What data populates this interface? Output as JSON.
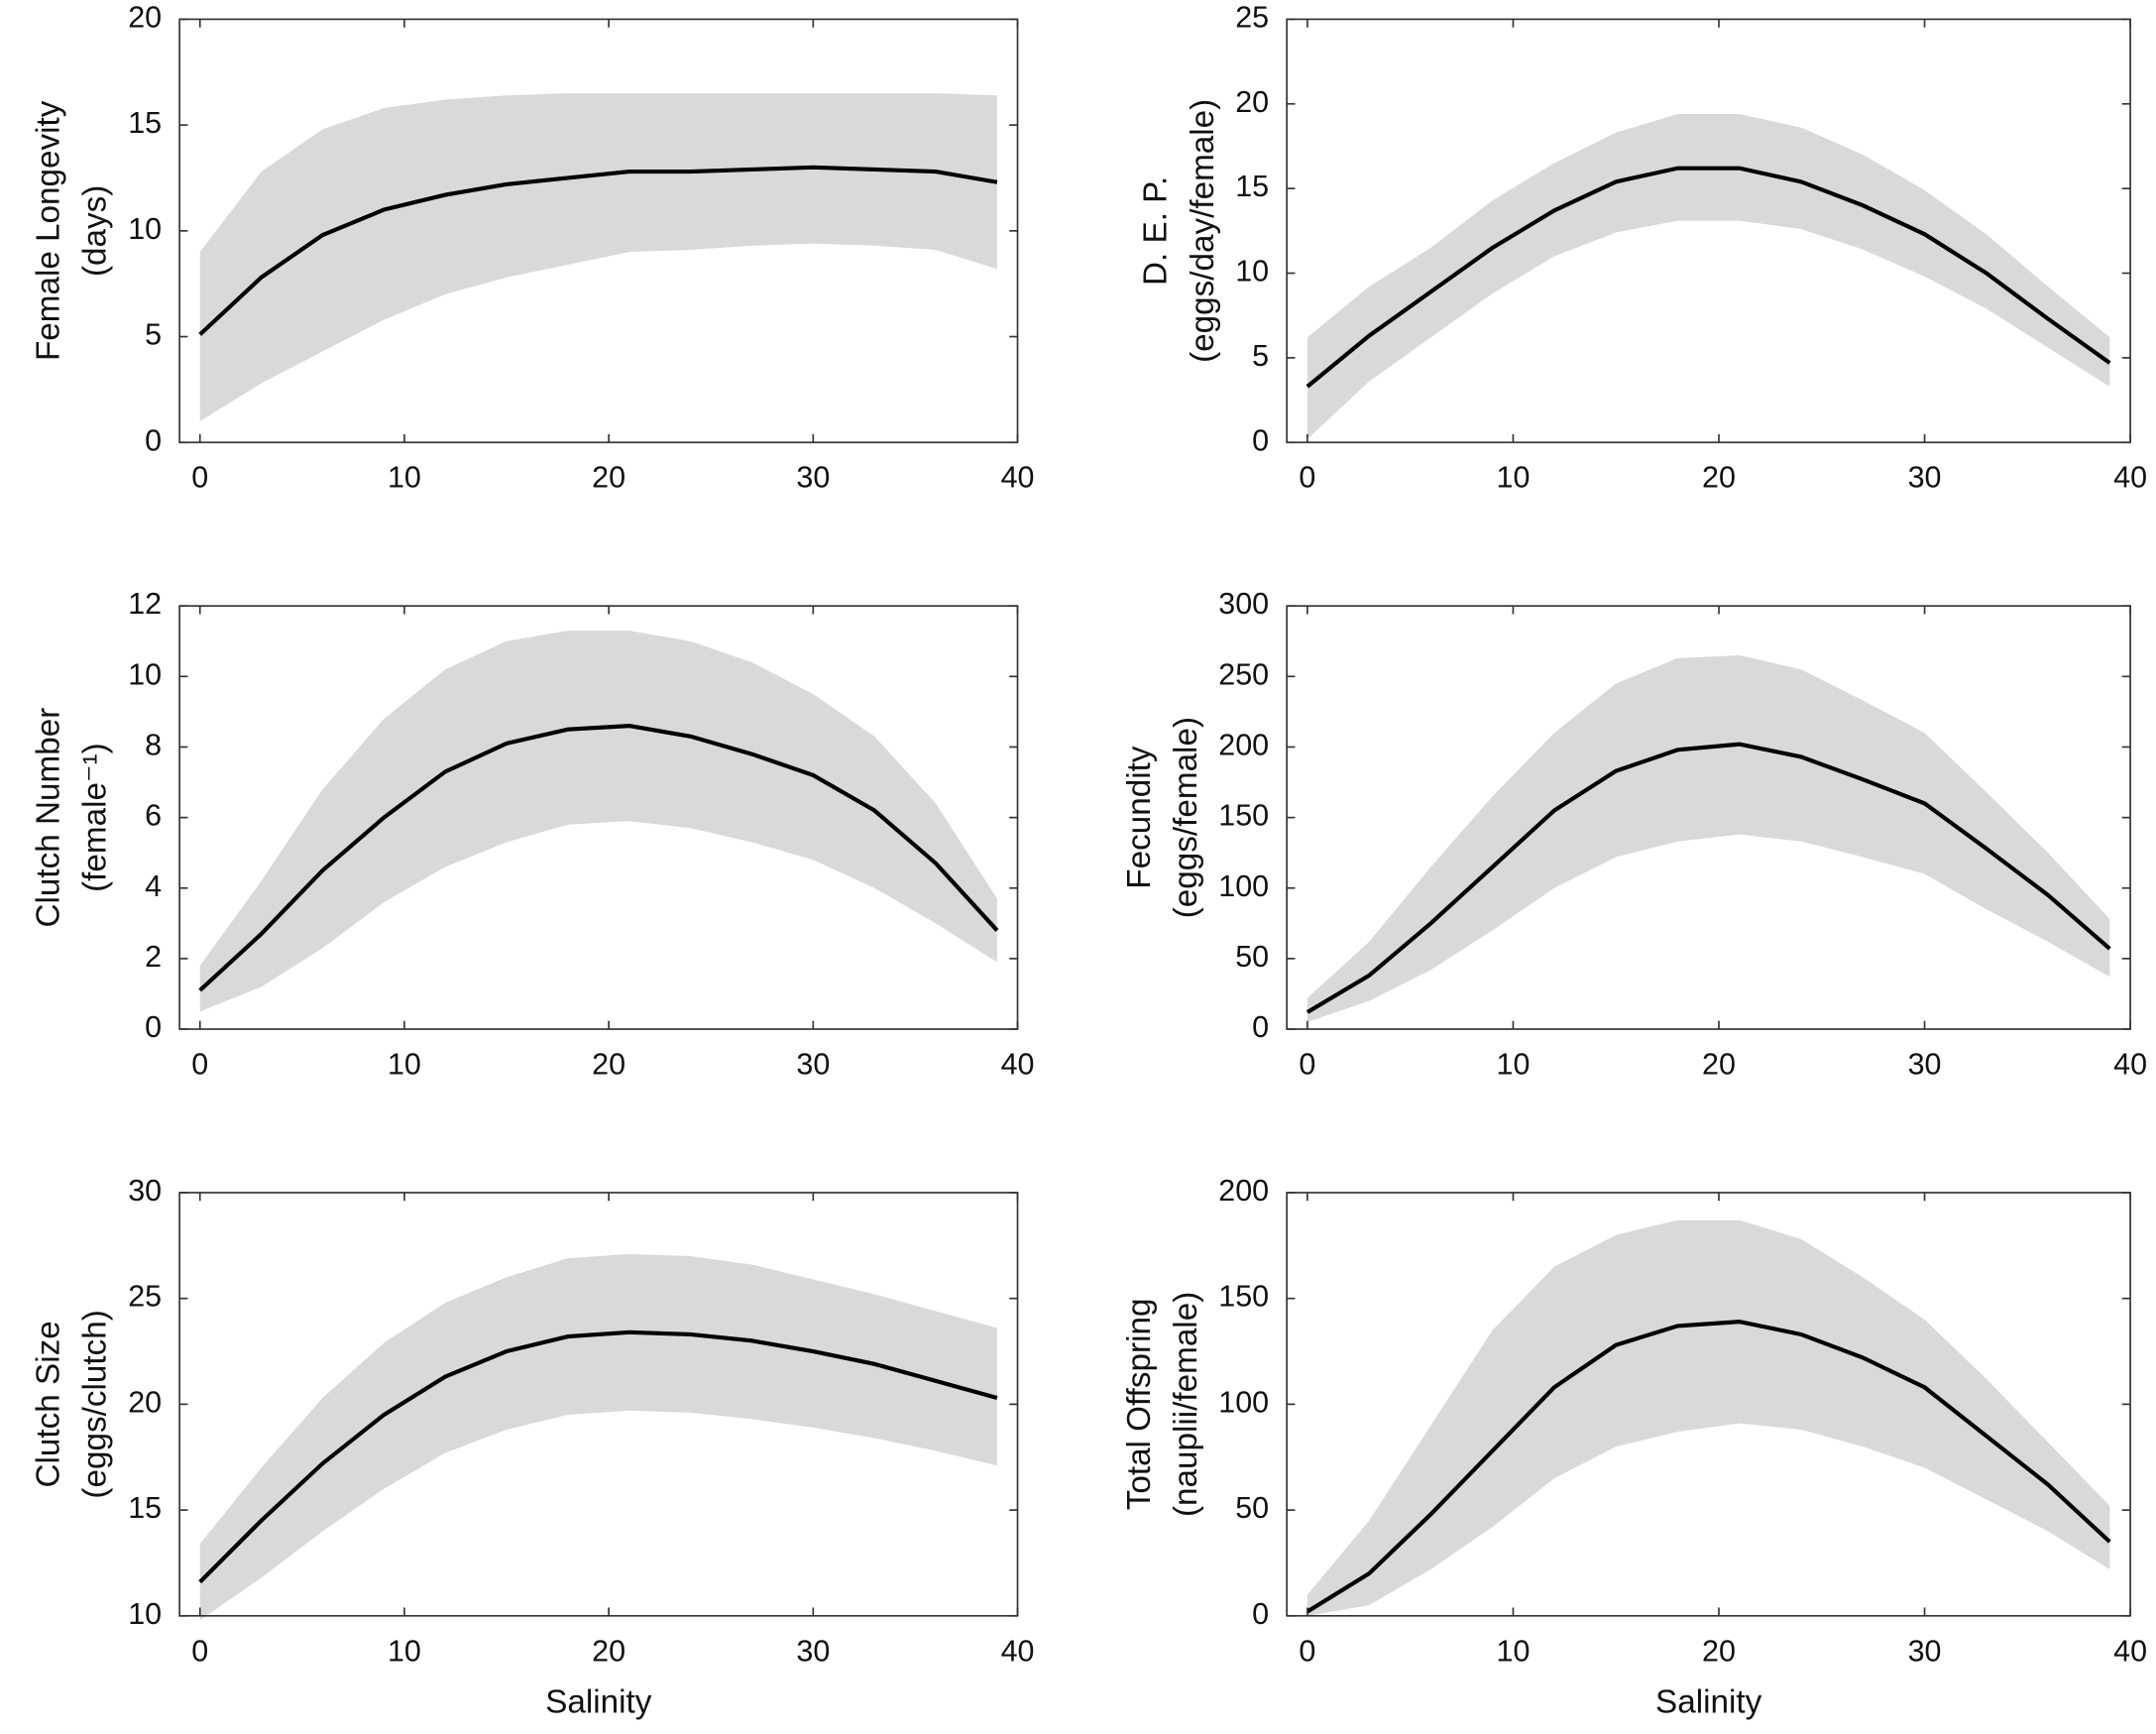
{
  "chart_data": [
    {
      "type": "line",
      "ylabel": [
        "Female Longevity",
        "(days)"
      ],
      "x": [
        0,
        3,
        6,
        9,
        12,
        15,
        18,
        21,
        24,
        27,
        30,
        33,
        36,
        39
      ],
      "xlim": [
        -1,
        40
      ],
      "xticks": [
        0,
        10,
        20,
        30,
        40
      ],
      "ylim": [
        0,
        20
      ],
      "yticks": [
        0,
        5,
        10,
        15,
        20
      ],
      "color": "#000000",
      "band_color": "#d9d9d9",
      "values": [
        5.1,
        7.8,
        9.8,
        11.0,
        11.7,
        12.2,
        12.5,
        12.8,
        12.8,
        12.9,
        13.0,
        12.9,
        12.8,
        12.3
      ],
      "band_lower": [
        1.0,
        2.8,
        4.3,
        5.8,
        7.0,
        7.8,
        8.4,
        9.0,
        9.1,
        9.3,
        9.4,
        9.3,
        9.1,
        8.2
      ],
      "band_upper": [
        9.0,
        12.8,
        14.8,
        15.8,
        16.2,
        16.4,
        16.5,
        16.5,
        16.5,
        16.5,
        16.5,
        16.5,
        16.5,
        16.4
      ]
    },
    {
      "type": "line",
      "ylabel": [
        "D. E. P.",
        "(eggs/day/female)"
      ],
      "x": [
        0,
        3,
        6,
        9,
        12,
        15,
        18,
        21,
        24,
        27,
        30,
        33,
        36,
        39
      ],
      "xlim": [
        -1,
        40
      ],
      "xticks": [
        0,
        10,
        20,
        30,
        40
      ],
      "ylim": [
        0,
        25
      ],
      "yticks": [
        0,
        5,
        10,
        15,
        20,
        25
      ],
      "color": "#000000",
      "band_color": "#d9d9d9",
      "values": [
        3.3,
        6.3,
        8.9,
        11.5,
        13.7,
        15.4,
        16.2,
        16.2,
        15.4,
        14.0,
        12.3,
        10.0,
        7.3,
        4.7
      ],
      "band_lower": [
        0.2,
        3.6,
        6.2,
        8.8,
        11.0,
        12.4,
        13.1,
        13.1,
        12.6,
        11.4,
        9.8,
        7.9,
        5.6,
        3.3
      ],
      "band_upper": [
        6.2,
        9.2,
        11.5,
        14.3,
        16.5,
        18.3,
        19.4,
        19.4,
        18.6,
        17.0,
        14.9,
        12.3,
        9.2,
        6.2
      ]
    },
    {
      "type": "line",
      "ylabel": [
        "Clutch Number",
        "(female⁻¹)"
      ],
      "x": [
        0,
        3,
        6,
        9,
        12,
        15,
        18,
        21,
        24,
        27,
        30,
        33,
        36,
        39
      ],
      "xlim": [
        -1,
        40
      ],
      "xticks": [
        0,
        10,
        20,
        30,
        40
      ],
      "ylim": [
        0,
        12
      ],
      "yticks": [
        0,
        2,
        4,
        6,
        8,
        10,
        12
      ],
      "color": "#000000",
      "band_color": "#d9d9d9",
      "values": [
        1.1,
        2.7,
        4.5,
        6.0,
        7.3,
        8.1,
        8.5,
        8.6,
        8.3,
        7.8,
        7.2,
        6.2,
        4.7,
        2.8
      ],
      "band_lower": [
        0.5,
        1.2,
        2.3,
        3.6,
        4.6,
        5.3,
        5.8,
        5.9,
        5.7,
        5.3,
        4.8,
        4.0,
        3.0,
        1.9
      ],
      "band_upper": [
        1.8,
        4.2,
        6.8,
        8.8,
        10.2,
        11.0,
        11.3,
        11.3,
        11.0,
        10.4,
        9.5,
        8.3,
        6.4,
        3.7
      ]
    },
    {
      "type": "line",
      "ylabel": [
        "Fecundity",
        "(eggs/female)"
      ],
      "x": [
        0,
        3,
        6,
        9,
        12,
        15,
        18,
        21,
        24,
        27,
        30,
        33,
        36,
        39
      ],
      "xlim": [
        -1,
        40
      ],
      "xticks": [
        0,
        10,
        20,
        30,
        40
      ],
      "ylim": [
        0,
        300
      ],
      "yticks": [
        0,
        50,
        100,
        150,
        200,
        250,
        300
      ],
      "color": "#000000",
      "band_color": "#d9d9d9",
      "values": [
        12,
        38,
        75,
        115,
        155,
        183,
        198,
        202,
        193,
        177,
        160,
        128,
        95,
        57
      ],
      "band_lower": [
        5,
        20,
        42,
        70,
        100,
        122,
        133,
        138,
        133,
        122,
        110,
        85,
        62,
        37
      ],
      "band_upper": [
        22,
        62,
        115,
        165,
        210,
        245,
        263,
        265,
        255,
        233,
        210,
        168,
        125,
        78
      ]
    },
    {
      "type": "line",
      "ylabel": [
        "Clutch Size",
        "(eggs/clutch)"
      ],
      "xlabel": "Salinity",
      "x": [
        0,
        3,
        6,
        9,
        12,
        15,
        18,
        21,
        24,
        27,
        30,
        33,
        36,
        39
      ],
      "xlim": [
        -1,
        40
      ],
      "xticks": [
        0,
        10,
        20,
        30,
        40
      ],
      "ylim": [
        10,
        30
      ],
      "yticks": [
        10,
        15,
        20,
        25,
        30
      ],
      "color": "#000000",
      "band_color": "#d9d9d9",
      "values": [
        11.6,
        14.5,
        17.2,
        19.5,
        21.3,
        22.5,
        23.2,
        23.4,
        23.3,
        23.0,
        22.5,
        21.9,
        21.1,
        20.3
      ],
      "band_lower": [
        9.8,
        11.8,
        14.0,
        16.0,
        17.7,
        18.8,
        19.5,
        19.7,
        19.6,
        19.3,
        18.9,
        18.4,
        17.8,
        17.1
      ],
      "band_upper": [
        13.4,
        17.0,
        20.3,
        22.9,
        24.8,
        26.0,
        26.9,
        27.1,
        27.0,
        26.6,
        25.9,
        25.2,
        24.4,
        23.6
      ]
    },
    {
      "type": "line",
      "ylabel": [
        "Total Offspring",
        "(nauplii/female)"
      ],
      "xlabel": "Salinity",
      "x": [
        0,
        3,
        6,
        9,
        12,
        15,
        18,
        21,
        24,
        27,
        30,
        33,
        36,
        39
      ],
      "xlim": [
        -1,
        40
      ],
      "xticks": [
        0,
        10,
        20,
        30,
        40
      ],
      "ylim": [
        0,
        200
      ],
      "yticks": [
        0,
        50,
        100,
        150,
        200
      ],
      "color": "#000000",
      "band_color": "#d9d9d9",
      "values": [
        2,
        20,
        48,
        78,
        108,
        128,
        137,
        139,
        133,
        122,
        108,
        85,
        62,
        35
      ],
      "band_lower": [
        0,
        5,
        22,
        42,
        65,
        80,
        87,
        91,
        88,
        80,
        70,
        55,
        40,
        22
      ],
      "band_upper": [
        10,
        45,
        90,
        135,
        165,
        180,
        187,
        187,
        178,
        160,
        140,
        112,
        82,
        52
      ]
    }
  ]
}
